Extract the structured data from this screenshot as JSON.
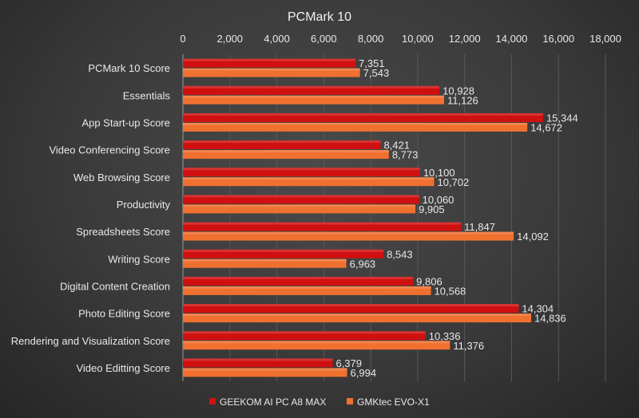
{
  "chart_data": {
    "type": "bar",
    "orientation": "horizontal",
    "title": "PCMark 10",
    "xlabel": "",
    "ylabel": "",
    "xlim": [
      0,
      18000
    ],
    "x_ticks": [
      "0",
      "2,000",
      "4,000",
      "6,000",
      "8,000",
      "10,000",
      "12,000",
      "14,000",
      "16,000",
      "18,000"
    ],
    "x_axis_position": "top",
    "grid": true,
    "legend": "bottom",
    "categories": [
      "PCMark 10 Score",
      "Essentials",
      "App Start-up Score",
      "Video Conferencing Score",
      "Web Browsing Score",
      "Productivity",
      "Spreadsheets Score",
      "Writing Score",
      "Digital Content Creation",
      "Photo Editing Score",
      "Rendering and Visualization Score",
      "Video Editting Score"
    ],
    "series": [
      {
        "name": "GEEKOM AI PC A8 MAX",
        "color": "#d01010",
        "values": [
          7351,
          10928,
          15344,
          8421,
          10100,
          10060,
          11847,
          8543,
          9806,
          14304,
          10336,
          6379
        ],
        "labels": [
          "7,351",
          "10,928",
          "15,344",
          "8,421",
          "10,100",
          "10,060",
          "11,847",
          "8,543",
          "9,806",
          "14,304",
          "10,336",
          "6,379"
        ]
      },
      {
        "name": "GMKtec EVO-X1",
        "color": "#f07030",
        "values": [
          7543,
          11126,
          14672,
          8773,
          10702,
          9905,
          14092,
          6963,
          10568,
          14836,
          11376,
          6994
        ],
        "labels": [
          "7,543",
          "11,126",
          "14,672",
          "8,773",
          "10,702",
          "9,905",
          "14,092",
          "6,963",
          "10,568",
          "14,836",
          "11,376",
          "6,994"
        ]
      }
    ]
  }
}
